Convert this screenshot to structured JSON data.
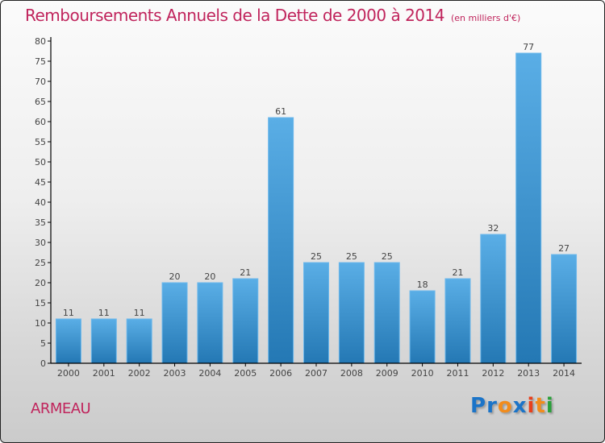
{
  "header": {
    "title": "Remboursements Annuels de la Dette de 2000 à 2014",
    "unit_note": "(en milliers d'€)"
  },
  "footer": {
    "commune": "ARMEAU",
    "logo_letters": [
      {
        "char": "P",
        "color": "#1b74c8"
      },
      {
        "char": "r",
        "color": "#1b74c8"
      },
      {
        "char": "o",
        "color": "#f28c1c"
      },
      {
        "char": "x",
        "color": "#1b74c8"
      },
      {
        "char": "i",
        "color": "#e8401c"
      },
      {
        "char": "t",
        "color": "#f28c1c"
      },
      {
        "char": "i",
        "color": "#2aa03a"
      }
    ]
  },
  "colors": {
    "title": "#c0245c",
    "bar_top": "#5aaee6",
    "bar_bottom": "#2478b4",
    "bar_border": "#6cb8ec"
  },
  "chart_data": {
    "type": "bar",
    "title": "Remboursements Annuels de la Dette de 2000 à 2014",
    "subtitle": "(en milliers d'€)",
    "xlabel": "",
    "ylabel": "",
    "categories": [
      "2000",
      "2001",
      "2002",
      "2003",
      "2004",
      "2005",
      "2006",
      "2007",
      "2008",
      "2009",
      "2010",
      "2011",
      "2012",
      "2013",
      "2014"
    ],
    "values": [
      11,
      11,
      11,
      20,
      20,
      21,
      61,
      25,
      25,
      25,
      18,
      21,
      32,
      77,
      27
    ],
    "ylim": [
      0,
      80
    ],
    "yticks": [
      0,
      5,
      10,
      15,
      20,
      25,
      30,
      35,
      40,
      45,
      50,
      55,
      60,
      65,
      70,
      75,
      80
    ],
    "grid": false,
    "legend": "none",
    "data_labels": true
  }
}
